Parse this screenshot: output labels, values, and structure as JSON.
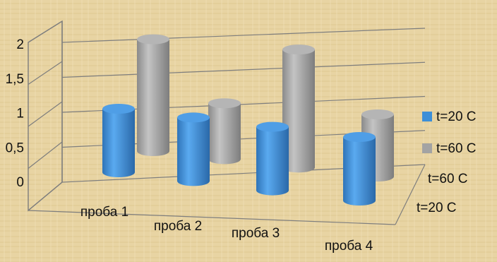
{
  "colors": {
    "background": "#e9d6a6",
    "series_1": "#3d8fd8",
    "series_2": "#a3a3a3",
    "wall": "#888888"
  },
  "chart_data": {
    "type": "bar",
    "style": "3d-cylinder",
    "categories": [
      "проба 1",
      "проба 2",
      "проба 3",
      "проба 4"
    ],
    "series": [
      {
        "name": "t=20 C",
        "values": [
          1.0,
          1.0,
          1.0,
          1.0
        ]
      },
      {
        "name": "t=60 C",
        "values": [
          1.8,
          0.9,
          1.9,
          1.0
        ]
      }
    ],
    "depth_labels": [
      "t=20 C",
      "t=60 C"
    ],
    "yticks": [
      "0",
      "0,5",
      "1",
      "1,5",
      "2"
    ],
    "ylim": [
      0,
      2
    ],
    "grid": true,
    "legend_position": "right"
  }
}
